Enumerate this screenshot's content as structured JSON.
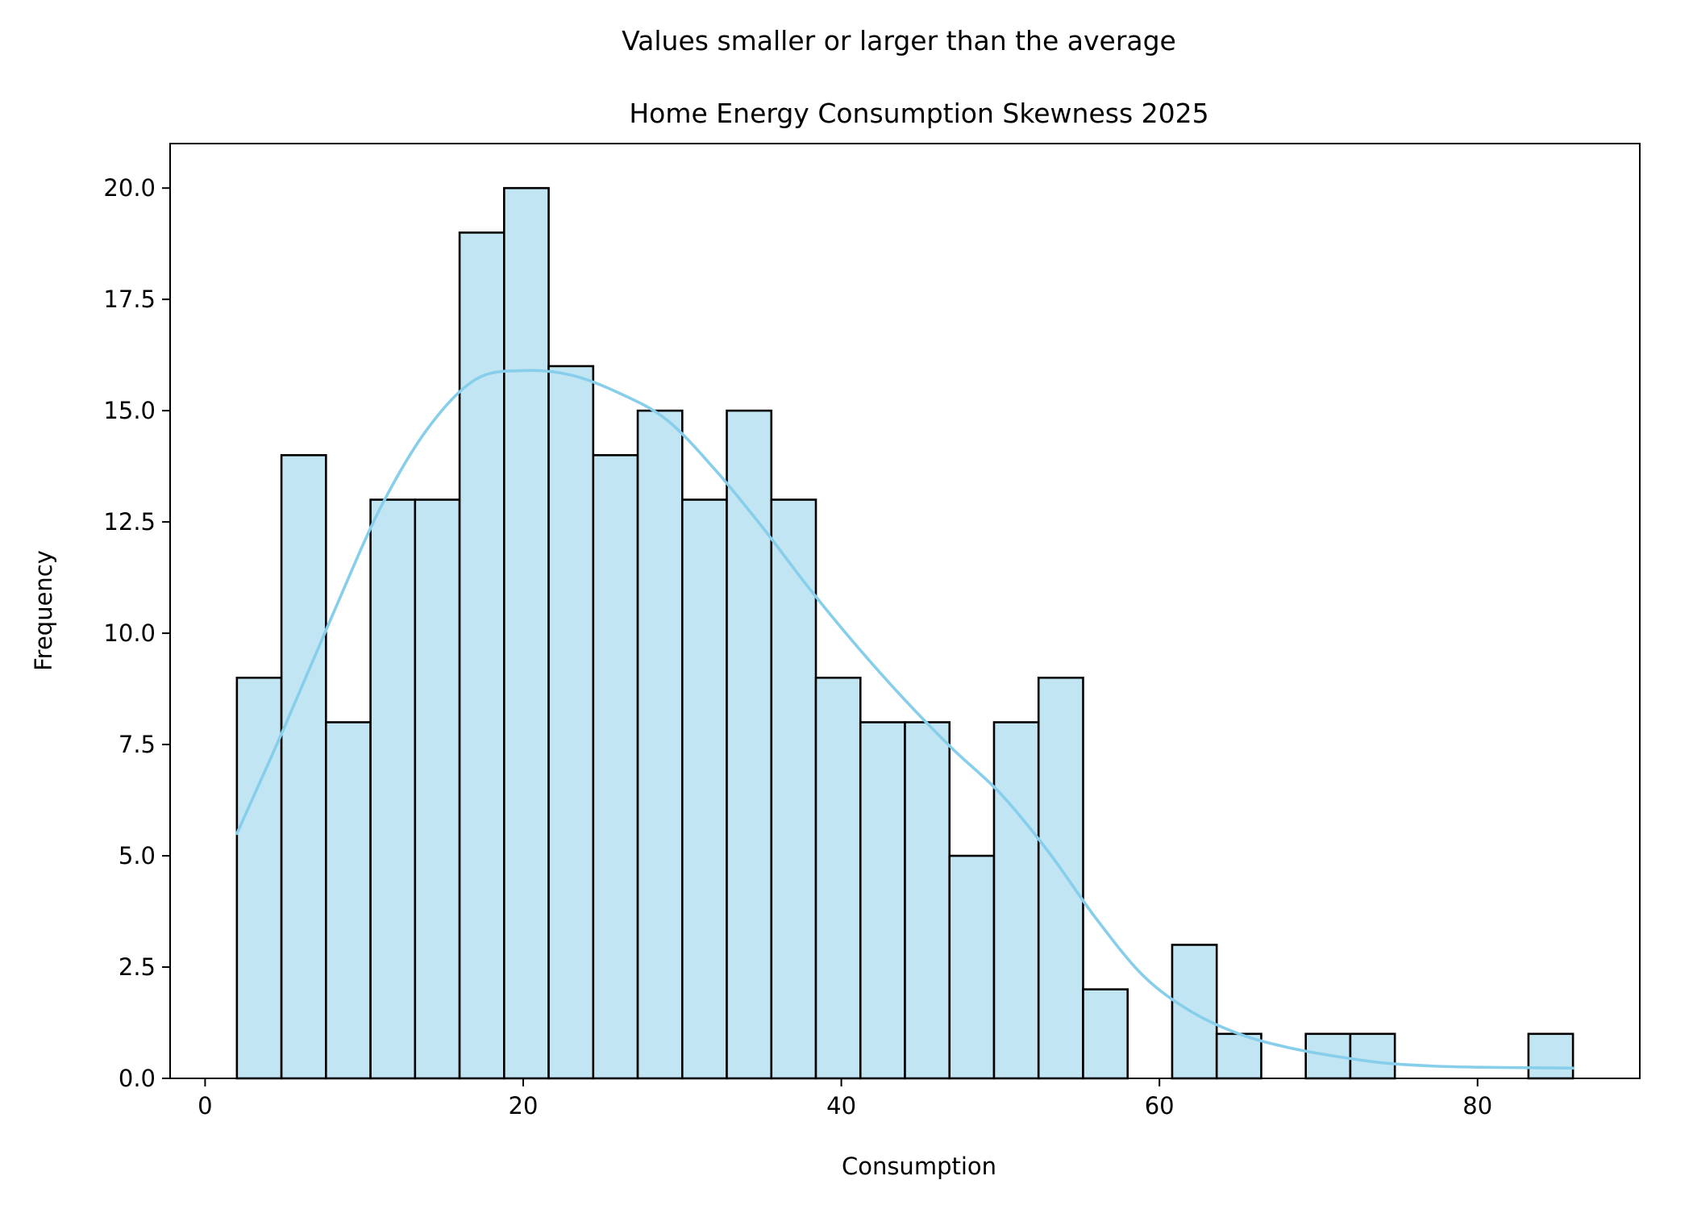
{
  "chart_data": {
    "type": "bar",
    "suptitle": "Values smaller or larger than the average",
    "title": "Home Energy Consumption Skewness 2025",
    "xlabel": "Consumption",
    "ylabel": "Frequency",
    "xlim": [
      -2.2,
      90.2
    ],
    "ylim": [
      0,
      21.0
    ],
    "xticks": [
      0,
      20,
      40,
      60,
      80
    ],
    "xtick_labels": [
      "0",
      "20",
      "40",
      "60",
      "80"
    ],
    "yticks": [
      0,
      2.5,
      5,
      7.5,
      10,
      12.5,
      15,
      17.5,
      20
    ],
    "ytick_labels": [
      "0.0",
      "2.5",
      "5.0",
      "7.5",
      "10.0",
      "12.5",
      "15.0",
      "17.5",
      "20.0"
    ],
    "bin_start": 2.0,
    "bin_width": 2.8,
    "values": [
      9,
      14,
      8,
      13,
      13,
      19,
      20,
      16,
      14,
      15,
      13,
      15,
      13,
      9,
      8,
      8,
      5,
      8,
      9,
      2,
      0,
      3,
      1,
      0,
      1,
      1,
      0,
      0,
      0,
      1
    ],
    "bar_color": "#c2e5f4",
    "edge_color": "#000000",
    "kde": {
      "color": "#87ceeb",
      "x": [
        2,
        5,
        8,
        11,
        14,
        17,
        20,
        23,
        26,
        29,
        32,
        35,
        38,
        41,
        44,
        47,
        50,
        53,
        56,
        59,
        62,
        65,
        68,
        71,
        74,
        77,
        80,
        83,
        86
      ],
      "y": [
        5.5,
        7.9,
        10.4,
        12.8,
        14.6,
        15.7,
        15.9,
        15.8,
        15.4,
        14.8,
        13.7,
        12.4,
        11.0,
        9.7,
        8.5,
        7.4,
        6.4,
        5.1,
        3.6,
        2.3,
        1.5,
        1.0,
        0.7,
        0.5,
        0.35,
        0.28,
        0.25,
        0.24,
        0.23
      ]
    }
  }
}
